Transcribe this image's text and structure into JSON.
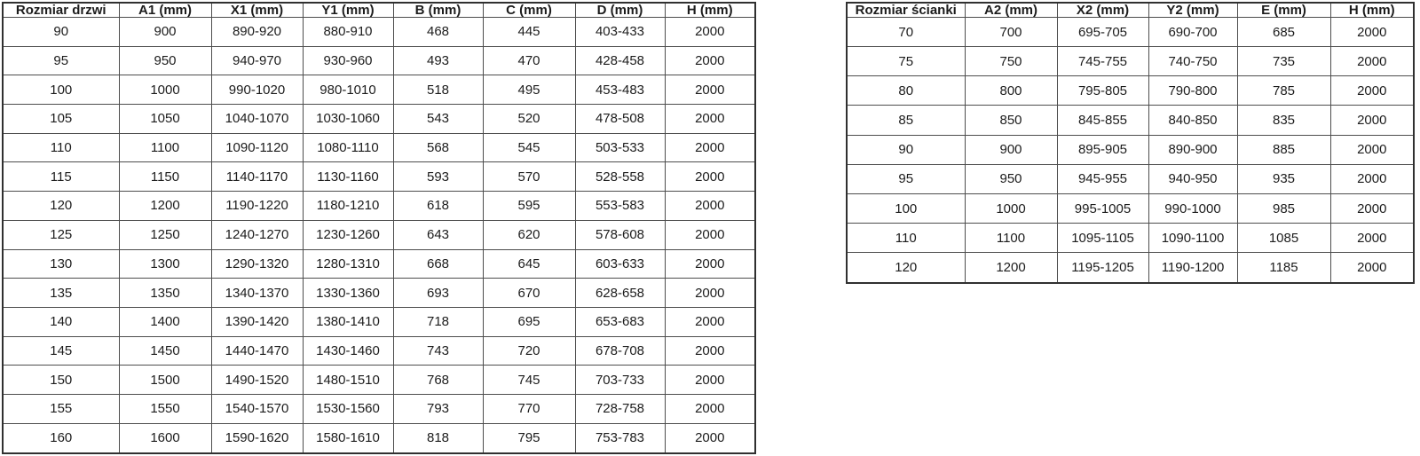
{
  "door_table": {
    "headers": [
      "Rozmiar drzwi",
      "A1 (mm)",
      "X1 (mm)",
      "Y1 (mm)",
      "B (mm)",
      "C (mm)",
      "D (mm)",
      "H (mm)"
    ],
    "rows": [
      [
        "90",
        "900",
        "890-920",
        "880-910",
        "468",
        "445",
        "403-433",
        "2000"
      ],
      [
        "95",
        "950",
        "940-970",
        "930-960",
        "493",
        "470",
        "428-458",
        "2000"
      ],
      [
        "100",
        "1000",
        "990-1020",
        "980-1010",
        "518",
        "495",
        "453-483",
        "2000"
      ],
      [
        "105",
        "1050",
        "1040-1070",
        "1030-1060",
        "543",
        "520",
        "478-508",
        "2000"
      ],
      [
        "110",
        "1100",
        "1090-1120",
        "1080-1110",
        "568",
        "545",
        "503-533",
        "2000"
      ],
      [
        "115",
        "1150",
        "1140-1170",
        "1130-1160",
        "593",
        "570",
        "528-558",
        "2000"
      ],
      [
        "120",
        "1200",
        "1190-1220",
        "1180-1210",
        "618",
        "595",
        "553-583",
        "2000"
      ],
      [
        "125",
        "1250",
        "1240-1270",
        "1230-1260",
        "643",
        "620",
        "578-608",
        "2000"
      ],
      [
        "130",
        "1300",
        "1290-1320",
        "1280-1310",
        "668",
        "645",
        "603-633",
        "2000"
      ],
      [
        "135",
        "1350",
        "1340-1370",
        "1330-1360",
        "693",
        "670",
        "628-658",
        "2000"
      ],
      [
        "140",
        "1400",
        "1390-1420",
        "1380-1410",
        "718",
        "695",
        "653-683",
        "2000"
      ],
      [
        "145",
        "1450",
        "1440-1470",
        "1430-1460",
        "743",
        "720",
        "678-708",
        "2000"
      ],
      [
        "150",
        "1500",
        "1490-1520",
        "1480-1510",
        "768",
        "745",
        "703-733",
        "2000"
      ],
      [
        "155",
        "1550",
        "1540-1570",
        "1530-1560",
        "793",
        "770",
        "728-758",
        "2000"
      ],
      [
        "160",
        "1600",
        "1590-1620",
        "1580-1610",
        "818",
        "795",
        "753-783",
        "2000"
      ]
    ]
  },
  "wall_table": {
    "headers": [
      "Rozmiar ścianki",
      "A2 (mm)",
      "X2 (mm)",
      "Y2 (mm)",
      "E (mm)",
      "H (mm)"
    ],
    "rows": [
      [
        "70",
        "700",
        "695-705",
        "690-700",
        "685",
        "2000"
      ],
      [
        "75",
        "750",
        "745-755",
        "740-750",
        "735",
        "2000"
      ],
      [
        "80",
        "800",
        "795-805",
        "790-800",
        "785",
        "2000"
      ],
      [
        "85",
        "850",
        "845-855",
        "840-850",
        "835",
        "2000"
      ],
      [
        "90",
        "900",
        "895-905",
        "890-900",
        "885",
        "2000"
      ],
      [
        "95",
        "950",
        "945-955",
        "940-950",
        "935",
        "2000"
      ],
      [
        "100",
        "1000",
        "995-1005",
        "990-1000",
        "985",
        "2000"
      ],
      [
        "110",
        "1100",
        "1095-1105",
        "1090-1100",
        "1085",
        "2000"
      ],
      [
        "120",
        "1200",
        "1195-1205",
        "1190-1200",
        "1185",
        "2000"
      ]
    ]
  },
  "colors": {
    "background": "#ffffff",
    "grid_border": "#4d4d4d",
    "outer_border": "#303030",
    "text": "#1c1c1c"
  }
}
